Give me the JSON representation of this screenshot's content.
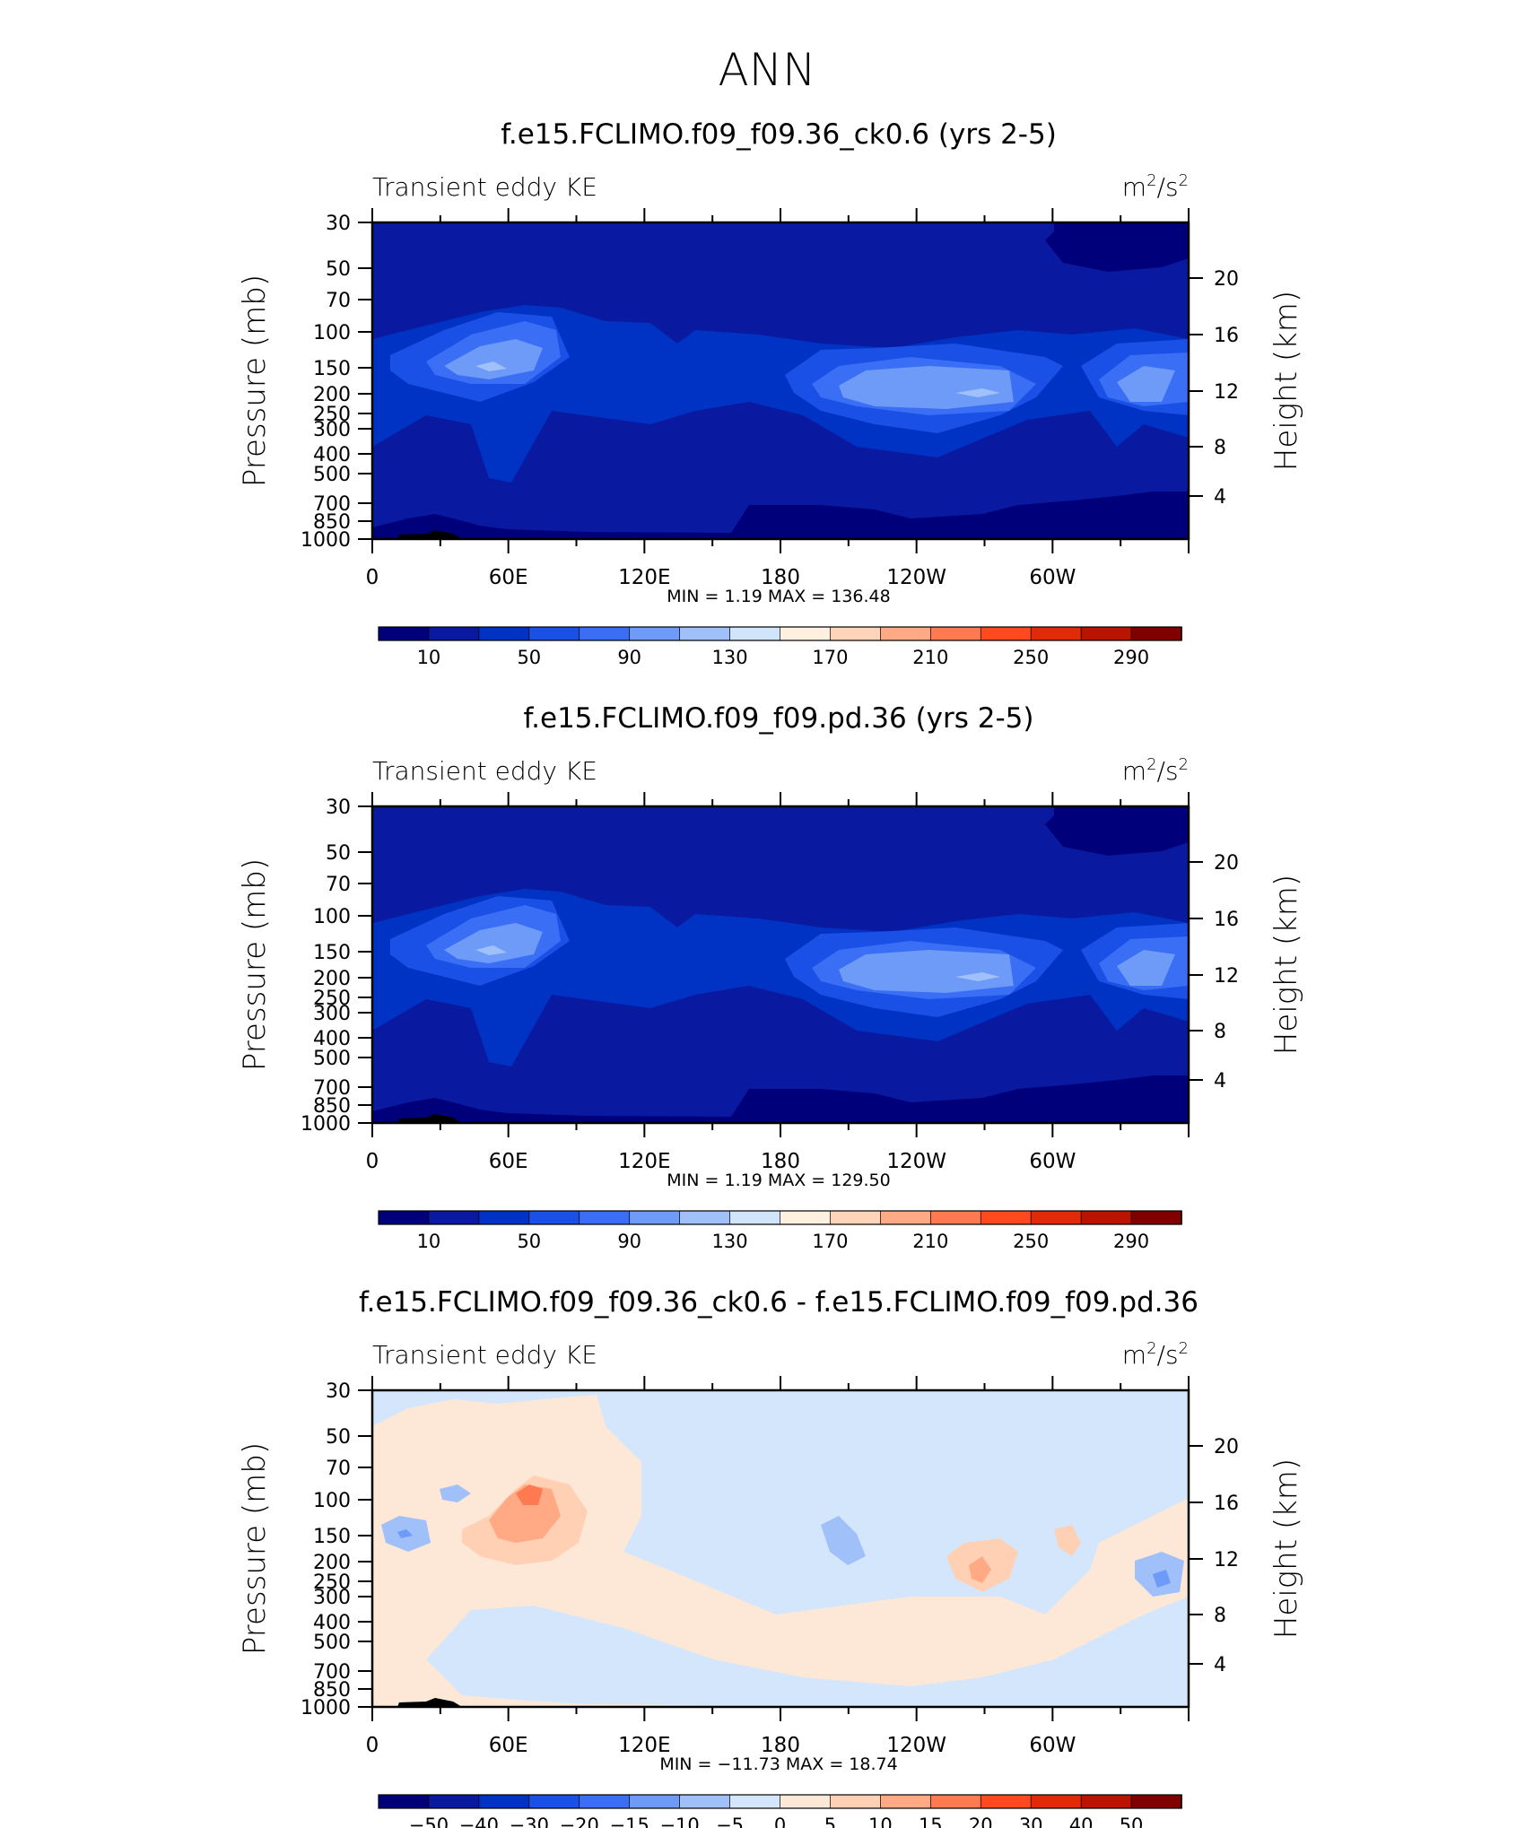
{
  "page_title": "ANN",
  "colors": {
    "abs_palette": [
      "#00007a",
      "#0a1aa0",
      "#0033c4",
      "#1a50e6",
      "#3a6ef5",
      "#6e9af8",
      "#a0c0fa",
      "#d0e4fc",
      "#fff0e0",
      "#ffd4b8",
      "#ffaa85",
      "#ff7a50",
      "#ff4a20",
      "#e02a08",
      "#b81400",
      "#800000"
    ],
    "diff_palette": [
      "#00007a",
      "#0a1aa0",
      "#0033c4",
      "#1a50e6",
      "#3a6ef5",
      "#6e9af8",
      "#a0c0fa",
      "#d4e6fc",
      "#fde8d8",
      "#ffd0b4",
      "#ffaa85",
      "#ff7a50",
      "#ff4a20",
      "#e02a08",
      "#b81400",
      "#800000"
    ]
  },
  "chart_data": [
    {
      "type": "heatmap",
      "title": "f.e15.FCLIMO.f09_f09.36_ck0.6 (yrs 2-5)",
      "left_label": "Transient eddy KE",
      "units": {
        "base": "m",
        "sup1": "2",
        "mid": "/s",
        "sup2": "2"
      },
      "ylabel": "Pressure (mb)",
      "y2label": "Height (km)",
      "x_ticks": [
        "0",
        "60E",
        "120E",
        "180",
        "120W",
        "60W"
      ],
      "y_ticks": [
        "30",
        "50",
        "70",
        "100",
        "150",
        "200",
        "250",
        "300",
        "400",
        "500",
        "700",
        "850",
        "1000"
      ],
      "y2_ticks": [
        "20",
        "16",
        "12",
        "8",
        "4"
      ],
      "stats": {
        "min_label": "MIN =",
        "min": "1.19",
        "max_label": "MAX =",
        "max": "136.48"
      },
      "levels": [
        "10",
        "50",
        "90",
        "130",
        "170",
        "210",
        "250",
        "290"
      ],
      "contours": [
        {
          "level": 1,
          "rings": [
            [
              [
                10,
                242
              ],
              [
                50,
                218
              ],
              [
                120,
                225
              ],
              [
                190,
                215
              ],
              [
                270,
                225
              ],
              [
                330,
                238
              ],
              [
                420,
                232
              ],
              [
                520,
                245
              ],
              [
                600,
                238
              ],
              [
                690,
                230
              ],
              [
                730,
                232
              ],
              [
                720,
                270
              ],
              [
                630,
                282
              ],
              [
                560,
                290
              ],
              [
                480,
                290
              ],
              [
                420,
                298
              ],
              [
                360,
                300
              ],
              [
                280,
                292
              ],
              [
                200,
                288
              ],
              [
                100,
                282
              ],
              [
                20,
                278
              ],
              [
                10,
                262
              ]
            ]
          ]
        },
        {
          "level": 2,
          "rings": [
            [
              [
                10,
                258
              ],
              [
                60,
                242
              ],
              [
                110,
                248
              ],
              [
                180,
                240
              ],
              [
                270,
                252
              ],
              [
                330,
                262
              ],
              [
                420,
                258
              ],
              [
                520,
                268
              ],
              [
                600,
                260
              ],
              [
                690,
                248
              ],
              [
                720,
                255
              ],
              [
                715,
                262
              ],
              [
                630,
                265
              ],
              [
                560,
                270
              ],
              [
                480,
                272
              ],
              [
                400,
                275
              ],
              [
                330,
                275
              ],
              [
                270,
                270
              ],
              [
                190,
                268
              ],
              [
                100,
                266
              ],
              [
                30,
                264
              ],
              [
                10,
                262
              ]
            ]
          ]
        },
        {
          "level": 3,
          "rings": [
            [
              [
                80,
                262
              ],
              [
                150,
                245
              ],
              [
                240,
                240
              ],
              [
                330,
                248
              ],
              [
                430,
                255
              ],
              [
                540,
                262
              ],
              [
                600,
                268
              ],
              [
                610,
                276
              ],
              [
                540,
                278
              ],
              [
                430,
                278
              ],
              [
                340,
                276
              ],
              [
                250,
                270
              ],
              [
                160,
                270
              ],
              [
                90,
                270
              ]
            ]
          ]
        },
        {
          "level": 4,
          "rings": [
            [
              [
                125,
                268
              ],
              [
                165,
                255
              ],
              [
                220,
                252
              ],
              [
                265,
                262
              ],
              [
                240,
                272
              ],
              [
                180,
                275
              ],
              [
                130,
                273
              ]
            ]
          ]
        },
        {
          "level": 5,
          "rings": [
            [
              [
                160,
                268
              ],
              [
                190,
                262
              ],
              [
                220,
                264
              ],
              [
                205,
                272
              ],
              [
                170,
                272
              ]
            ]
          ]
        }
      ]
    },
    {
      "type": "heatmap",
      "title": "f.e15.FCLIMO.f09_f09.pd.36 (yrs 2-5)",
      "left_label": "Transient eddy KE",
      "units": {
        "base": "m",
        "sup1": "2",
        "mid": "/s",
        "sup2": "2"
      },
      "ylabel": "Pressure (mb)",
      "y2label": "Height (km)",
      "x_ticks": [
        "0",
        "60E",
        "120E",
        "180",
        "120W",
        "60W"
      ],
      "y_ticks": [
        "30",
        "50",
        "70",
        "100",
        "150",
        "200",
        "250",
        "300",
        "400",
        "500",
        "700",
        "850",
        "1000"
      ],
      "y2_ticks": [
        "20",
        "16",
        "12",
        "8",
        "4"
      ],
      "stats": {
        "min_label": "MIN =",
        "min": "1.19",
        "max_label": "MAX =",
        "max": "129.50"
      },
      "levels": [
        "10",
        "50",
        "90",
        "130",
        "170",
        "210",
        "250",
        "290"
      ],
      "contours": []
    },
    {
      "type": "heatmap",
      "title": "f.e15.FCLIMO.f09_f09.36_ck0.6 - f.e15.FCLIMO.f09_f09.pd.36",
      "left_label": "Transient eddy KE",
      "units": {
        "base": "m",
        "sup1": "2",
        "mid": "/s",
        "sup2": "2"
      },
      "ylabel": "Pressure (mb)",
      "y2label": "Height (km)",
      "x_ticks": [
        "0",
        "60E",
        "120E",
        "180",
        "120W",
        "60W"
      ],
      "y_ticks": [
        "30",
        "50",
        "70",
        "100",
        "150",
        "200",
        "250",
        "300",
        "400",
        "500",
        "700",
        "850",
        "1000"
      ],
      "y2_ticks": [
        "20",
        "16",
        "12",
        "8",
        "4"
      ],
      "stats": {
        "min_label": "MIN =",
        "min": "−11.73",
        "max_label": "MAX =",
        "max": "18.74"
      },
      "levels": [
        "−50",
        "−40",
        "−30",
        "−20",
        "−15",
        "−10",
        "−5",
        "0",
        "5",
        "10",
        "15",
        "20",
        "30",
        "40",
        "50"
      ],
      "contours": []
    }
  ]
}
